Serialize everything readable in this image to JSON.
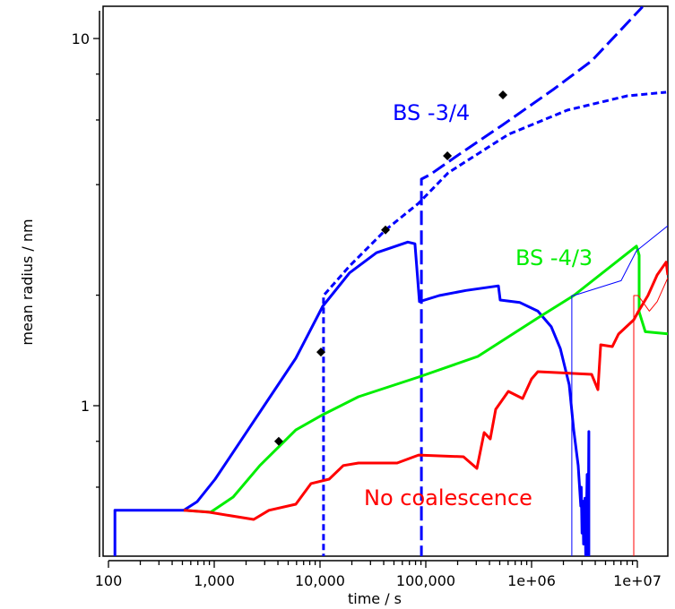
{
  "chart_data": {
    "type": "line",
    "title": "",
    "xlabel": "time / s",
    "ylabel": "mean radius / nm",
    "xscale": "log",
    "yscale": "log",
    "xlim": [
      89,
      19400000
    ],
    "ylim": [
      0.387,
      12.2
    ],
    "grid": false,
    "x_ticks": [
      {
        "value": 100,
        "label": "100"
      },
      {
        "value": 1000,
        "label": "1,000"
      },
      {
        "value": 10000,
        "label": "10,000"
      },
      {
        "value": 100000,
        "label": "100,000"
      },
      {
        "value": 1000000,
        "label": "1e+06"
      },
      {
        "value": 10000000,
        "label": "1e+07"
      }
    ],
    "y_ticks": [
      {
        "value": 1,
        "label": "1"
      },
      {
        "value": 10,
        "label": "10"
      }
    ],
    "y_minor_ticks": [
      0.6,
      0.8,
      2,
      4,
      6,
      8
    ],
    "annotations": [
      {
        "text": "BS -3/4",
        "color": "#0000ff"
      },
      {
        "text": "BS -4/3",
        "color": "#00ee00"
      },
      {
        "text": "No coalescence",
        "color": "#ff0000"
      }
    ],
    "series": [
      {
        "name": "BS -3/4 (solid)",
        "color": "#0000ff",
        "style": "solid",
        "width": 3,
        "points": [
          [
            115,
            0.38
          ],
          [
            115,
            0.519
          ],
          [
            515,
            0.519
          ],
          [
            690,
            0.548
          ],
          [
            1020,
            0.631
          ],
          [
            1830,
            0.812
          ],
          [
            3290,
            1.046
          ],
          [
            5900,
            1.347
          ],
          [
            10600,
            1.865
          ],
          [
            19000,
            2.3
          ],
          [
            34200,
            2.61
          ],
          [
            67600,
            2.79
          ],
          [
            79000,
            2.76
          ],
          [
            87000,
            1.92
          ],
          [
            134000,
            1.995
          ],
          [
            240000,
            2.06
          ],
          [
            486000,
            2.12
          ],
          [
            505000,
            1.94
          ],
          [
            776000,
            1.91
          ],
          [
            1146000,
            1.81
          ],
          [
            1535000,
            1.64
          ],
          [
            1870000,
            1.43
          ],
          [
            2270000,
            1.14
          ],
          [
            2500000,
            0.859
          ],
          [
            2760000,
            0.687
          ],
          [
            2920000,
            0.533
          ],
          [
            2950000,
            0.6
          ],
          [
            3000000,
            0.45
          ],
          [
            3050000,
            0.55
          ],
          [
            3100000,
            0.42
          ],
          [
            3200000,
            0.56
          ],
          [
            3250000,
            0.39
          ],
          [
            3350000,
            0.65
          ],
          [
            3420000,
            0.38
          ],
          [
            3480000,
            0.85
          ],
          [
            3480000,
            0.38
          ]
        ]
      },
      {
        "name": "BS -3/4 (long dash)",
        "color": "#0000ff",
        "style": "longdash",
        "width": 3,
        "points": [
          [
            90800,
            0.38
          ],
          [
            90800,
            4.14
          ],
          [
            110000,
            4.26
          ],
          [
            210000,
            4.85
          ],
          [
            525000,
            5.8
          ],
          [
            1600000,
            7.26
          ],
          [
            3700000,
            8.69
          ],
          [
            11200000,
            12.2
          ]
        ]
      },
      {
        "name": "BS -3/4 (short dash)",
        "color": "#0000ff",
        "style": "shortdash",
        "width": 3,
        "points": [
          [
            10800,
            0.38
          ],
          [
            10800,
            1.995
          ],
          [
            19000,
            2.4
          ],
          [
            41600,
            3.01
          ],
          [
            85600,
            3.56
          ],
          [
            163000,
            4.31
          ],
          [
            603000,
            5.48
          ],
          [
            2180000,
            6.38
          ],
          [
            8070000,
            6.98
          ],
          [
            18700000,
            7.14
          ]
        ]
      },
      {
        "name": "BS -4/3",
        "color": "#00ee00",
        "style": "solid",
        "width": 3,
        "points": [
          [
            515,
            0.519
          ],
          [
            925,
            0.513
          ],
          [
            1510,
            0.564
          ],
          [
            2700,
            0.687
          ],
          [
            5900,
            0.859
          ],
          [
            10600,
            0.945
          ],
          [
            23100,
            1.058
          ],
          [
            85600,
            1.197
          ],
          [
            310000,
            1.362
          ],
          [
            1146000,
            1.734
          ],
          [
            2500000,
            1.995
          ],
          [
            9800000,
            2.72
          ],
          [
            10400000,
            2.57
          ],
          [
            10400000,
            1.8
          ],
          [
            11900000,
            1.59
          ],
          [
            19400000,
            1.57
          ]
        ]
      },
      {
        "name": "No coalescence",
        "color": "#ff0000",
        "style": "solid",
        "width": 3,
        "points": [
          [
            515,
            0.519
          ],
          [
            889,
            0.513
          ],
          [
            2360,
            0.49
          ],
          [
            3290,
            0.519
          ],
          [
            5900,
            0.539
          ],
          [
            8220,
            0.614
          ],
          [
            12200,
            0.631
          ],
          [
            16600,
            0.687
          ],
          [
            23100,
            0.698
          ],
          [
            53600,
            0.698
          ],
          [
            85600,
            0.734
          ],
          [
            227000,
            0.726
          ],
          [
            304000,
            0.675
          ],
          [
            356000,
            0.845
          ],
          [
            407000,
            0.812
          ],
          [
            458000,
            0.978
          ],
          [
            603000,
            1.094
          ],
          [
            823000,
            1.046
          ],
          [
            1000000,
            1.183
          ],
          [
            1146000,
            1.238
          ],
          [
            3700000,
            1.217
          ],
          [
            4240000,
            1.106
          ],
          [
            4500000,
            1.465
          ],
          [
            5800000,
            1.449
          ],
          [
            6640000,
            1.567
          ],
          [
            9250000,
            1.714
          ],
          [
            10200000,
            1.803
          ],
          [
            12600000,
            1.995
          ],
          [
            15400000,
            2.27
          ],
          [
            18700000,
            2.46
          ],
          [
            19400000,
            2.27
          ]
        ]
      },
      {
        "name": "thin blue",
        "color": "#0000ff",
        "style": "solid",
        "width": 1,
        "points": [
          [
            2400000,
            0.38
          ],
          [
            2400000,
            1.995
          ],
          [
            2500000,
            1.995
          ],
          [
            7030000,
            2.19
          ],
          [
            9800000,
            2.64
          ],
          [
            19400000,
            3.09
          ]
        ]
      },
      {
        "name": "thin red",
        "color": "#ff0000",
        "style": "solid",
        "width": 1,
        "points": [
          [
            9250000,
            0.38
          ],
          [
            9250000,
            1.995
          ],
          [
            10200000,
            1.995
          ],
          [
            13000000,
            1.81
          ],
          [
            15400000,
            1.92
          ],
          [
            19400000,
            2.23
          ]
        ]
      }
    ],
    "markers": {
      "name": "reference points",
      "color": "#000000",
      "shape": "diamond",
      "points": [
        [
          4070,
          0.8
        ],
        [
          10200,
          1.4
        ],
        [
          41600,
          3.01
        ],
        [
          160000,
          4.79
        ],
        [
          536000,
          7.02
        ]
      ]
    }
  }
}
